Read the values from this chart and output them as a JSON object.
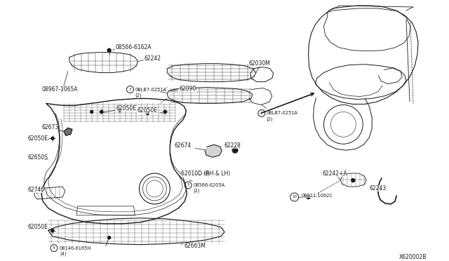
{
  "bg_color": "#ffffff",
  "line_color": "#1a1a1a",
  "text_color": "#1a1a1a",
  "diagram_id": "X620002B",
  "figsize": [
    6.4,
    3.72
  ],
  "dpi": 100,
  "xlim": [
    0,
    640
  ],
  "ylim": [
    0,
    372
  ]
}
